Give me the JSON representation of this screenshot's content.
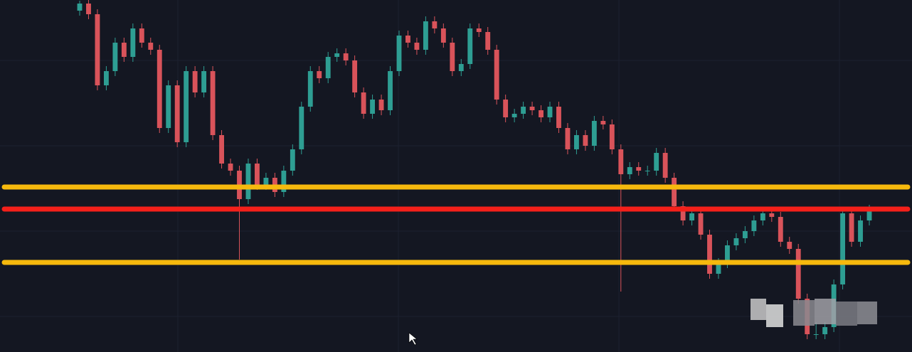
{
  "chart_data": {
    "type": "candlestick",
    "open": [
      480,
      490,
      475,
      375,
      395,
      435,
      415,
      455,
      435,
      425,
      315,
      375,
      295,
      395,
      365,
      395,
      305,
      265,
      255,
      215,
      265,
      235,
      245,
      225,
      255,
      285,
      345,
      395,
      385,
      415,
      420,
      410,
      365,
      335,
      355,
      340,
      395,
      445,
      435,
      425,
      465,
      455,
      435,
      395,
      405,
      455,
      450,
      425,
      355,
      330,
      335,
      345,
      340,
      330,
      345,
      315,
      285,
      305,
      290,
      325,
      320,
      285,
      250,
      260,
      255,
      255,
      280,
      245,
      205,
      185,
      195,
      165,
      110,
      125,
      150,
      160,
      170,
      185,
      195,
      190,
      155,
      145,
      75,
      25,
      25,
      35,
      95,
      195,
      155,
      185
    ],
    "high": [
      494,
      495,
      482,
      402,
      442,
      442,
      462,
      462,
      442,
      432,
      382,
      382,
      402,
      402,
      402,
      402,
      312,
      272,
      262,
      272,
      272,
      252,
      252,
      262,
      292,
      352,
      402,
      402,
      422,
      427,
      427,
      417,
      372,
      362,
      362,
      402,
      452,
      452,
      442,
      472,
      472,
      462,
      442,
      412,
      462,
      462,
      457,
      432,
      362,
      342,
      352,
      352,
      347,
      352,
      352,
      322,
      312,
      312,
      332,
      332,
      327,
      292,
      267,
      267,
      262,
      287,
      287,
      252,
      212,
      202,
      202,
      172,
      132,
      157,
      167,
      177,
      192,
      202,
      202,
      197,
      162,
      152,
      82,
      42,
      42,
      102,
      202,
      202,
      192,
      207
    ],
    "low": [
      473,
      468,
      368,
      368,
      388,
      408,
      408,
      428,
      418,
      308,
      308,
      288,
      288,
      358,
      358,
      298,
      258,
      248,
      130,
      208,
      228,
      228,
      218,
      218,
      248,
      278,
      338,
      378,
      378,
      408,
      403,
      358,
      328,
      328,
      333,
      333,
      388,
      428,
      418,
      418,
      448,
      428,
      388,
      388,
      398,
      443,
      418,
      348,
      323,
      323,
      328,
      333,
      323,
      323,
      308,
      278,
      278,
      283,
      283,
      313,
      278,
      85,
      243,
      248,
      248,
      248,
      238,
      198,
      178,
      178,
      158,
      103,
      103,
      118,
      143,
      153,
      163,
      178,
      183,
      148,
      138,
      68,
      18,
      18,
      18,
      28,
      88,
      148,
      148,
      178
    ],
    "close": [
      490,
      475,
      375,
      395,
      435,
      415,
      455,
      435,
      425,
      315,
      375,
      295,
      395,
      365,
      395,
      305,
      265,
      255,
      215,
      265,
      235,
      245,
      225,
      255,
      285,
      345,
      395,
      385,
      415,
      420,
      410,
      365,
      335,
      355,
      340,
      395,
      445,
      435,
      425,
      465,
      455,
      435,
      395,
      405,
      455,
      450,
      425,
      355,
      330,
      335,
      345,
      340,
      330,
      345,
      315,
      285,
      305,
      290,
      325,
      320,
      285,
      250,
      260,
      255,
      255,
      280,
      245,
      205,
      185,
      195,
      165,
      110,
      125,
      150,
      160,
      170,
      185,
      195,
      190,
      155,
      145,
      75,
      25,
      25,
      35,
      95,
      195,
      155,
      185,
      200
    ],
    "up_color": "#2e9e93",
    "down_color": "#d9535a",
    "ylim": [
      0,
      495
    ],
    "levels": [
      {
        "value": 232,
        "color": "#f6b90d"
      },
      {
        "value": 201,
        "color": "#f4201a"
      },
      {
        "value": 126,
        "color": "#f6b90d"
      }
    ]
  }
}
